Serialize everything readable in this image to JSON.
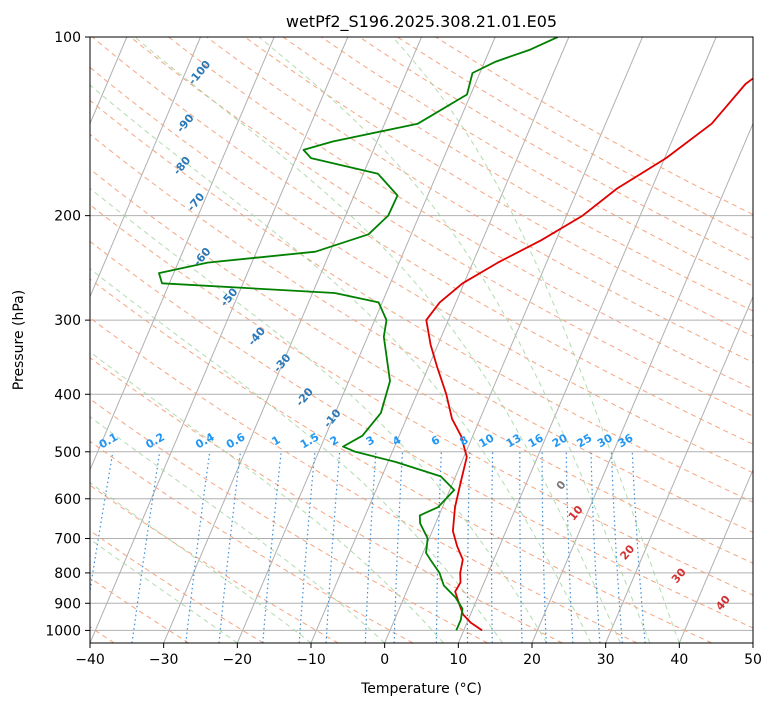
{
  "chart_data": {
    "type": "line",
    "title": "wetPf2_S196.2025.308.21.01.E05",
    "xlabel": "Temperature (°C)",
    "ylabel": "Pressure (hPa)",
    "xlim": [
      -40,
      50
    ],
    "ylim": [
      1050,
      100
    ],
    "y_scale": "log",
    "x_ticks": [
      "−40",
      "−30",
      "−20",
      "−10",
      "0",
      "10",
      "20",
      "30",
      "40",
      "50"
    ],
    "y_ticks": [
      "100",
      "200",
      "300",
      "400",
      "500",
      "600",
      "700",
      "800",
      "900",
      "1000"
    ],
    "grid": true,
    "series": [
      {
        "color": "#e00000",
        "points": [
          [
            1000,
            12.5
          ],
          [
            970,
            10.5
          ],
          [
            940,
            9.0
          ],
          [
            900,
            7.8
          ],
          [
            860,
            6.6
          ],
          [
            830,
            6.8
          ],
          [
            800,
            6.2
          ],
          [
            760,
            5.8
          ],
          [
            720,
            4.2
          ],
          [
            680,
            2.8
          ],
          [
            620,
            1.7
          ],
          [
            560,
            1.0
          ],
          [
            510,
            0.4
          ],
          [
            470,
            -1.6
          ],
          [
            440,
            -3.8
          ],
          [
            400,
            -6.0
          ],
          [
            360,
            -8.8
          ],
          [
            330,
            -11.0
          ],
          [
            300,
            -13.0
          ],
          [
            280,
            -12.2
          ],
          [
            260,
            -10.2
          ],
          [
            240,
            -6.6
          ],
          [
            220,
            -2.0
          ],
          [
            200,
            2.2
          ],
          [
            180,
            5.3
          ],
          [
            160,
            10.2
          ],
          [
            140,
            14.4
          ],
          [
            120,
            16.7
          ],
          [
            110,
            19.5
          ],
          [
            100,
            22.0
          ]
        ]
      },
      {
        "color": "#008000",
        "points": [
          [
            1000,
            9.0
          ],
          [
            960,
            9.0
          ],
          [
            920,
            8.6
          ],
          [
            880,
            7.0
          ],
          [
            840,
            4.7
          ],
          [
            800,
            3.4
          ],
          [
            760,
            1.4
          ],
          [
            740,
            0.4
          ],
          [
            700,
            -0.2
          ],
          [
            660,
            -2.1
          ],
          [
            640,
            -2.6
          ],
          [
            620,
            -0.6
          ],
          [
            580,
            0.6
          ],
          [
            550,
            -2.0
          ],
          [
            520,
            -9.0
          ],
          [
            500,
            -15.0
          ],
          [
            490,
            -17.0
          ],
          [
            470,
            -15.0
          ],
          [
            430,
            -13.8
          ],
          [
            380,
            -14.4
          ],
          [
            340,
            -16.6
          ],
          [
            320,
            -17.8
          ],
          [
            300,
            -18.4
          ],
          [
            280,
            -20.5
          ],
          [
            270,
            -27.0
          ],
          [
            260,
            -51.0
          ],
          [
            250,
            -52.0
          ],
          [
            240,
            -46.0
          ],
          [
            230,
            -32.0
          ],
          [
            215,
            -25.8
          ],
          [
            200,
            -24.2
          ],
          [
            185,
            -24.1
          ],
          [
            170,
            -28.0
          ],
          [
            160,
            -38.0
          ],
          [
            155,
            -39.5
          ],
          [
            150,
            -36.0
          ],
          [
            140,
            -25.5
          ],
          [
            125,
            -20.5
          ],
          [
            115,
            -21.0
          ],
          [
            110,
            -18.5
          ],
          [
            105,
            -14.5
          ],
          [
            100,
            -11.5
          ]
        ]
      }
    ],
    "dry_adiabat_labels": [
      "-100",
      "-90",
      "-80",
      "-70",
      "-60",
      "-50",
      "-40",
      "-30",
      "-20",
      "-10"
    ],
    "mixing_ratio_labels": [
      "0.1",
      "0.2",
      "0.4",
      "0.6",
      "1",
      "1.5",
      "2",
      "3",
      "4",
      "6",
      "8",
      "10",
      "13",
      "16",
      "20",
      "25",
      "30",
      "36"
    ],
    "moist_adiabat_labels": [
      "0",
      "10",
      "20",
      "30",
      "40"
    ]
  }
}
